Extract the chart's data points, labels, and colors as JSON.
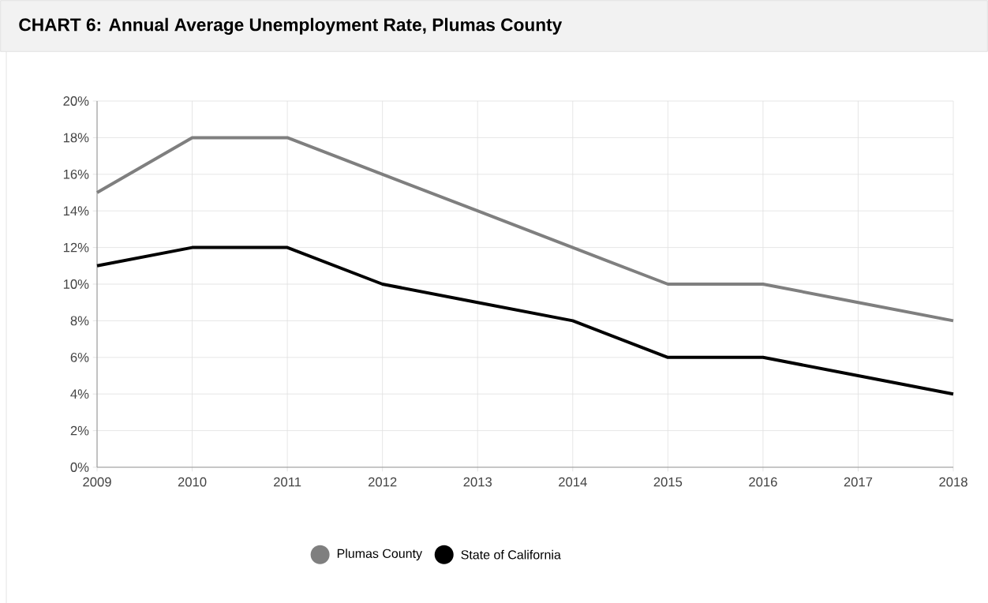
{
  "chart_data": {
    "type": "line",
    "title": "CHART 6: Annual Average Unemployment Rate, Plumas County",
    "x": [
      2009,
      2010,
      2011,
      2012,
      2013,
      2014,
      2015,
      2016,
      2017,
      2018
    ],
    "series": [
      {
        "name": "Plumas County",
        "color": "#7f7f7f",
        "values": [
          15,
          18,
          18,
          16,
          14,
          12,
          10,
          10,
          9,
          8
        ]
      },
      {
        "name": "State of California",
        "color": "#000000",
        "values": [
          11,
          12,
          12,
          10,
          9,
          8,
          6,
          6,
          5,
          4
        ]
      }
    ],
    "xlim": [
      2009,
      2018
    ],
    "xticks": [
      2009,
      2010,
      2011,
      2012,
      2013,
      2014,
      2015,
      2016,
      2017,
      2018
    ],
    "ylim": [
      0,
      20
    ],
    "yticks": [
      {
        "value": 0,
        "label": "0%"
      },
      {
        "value": 2,
        "label": "2%"
      },
      {
        "value": 4,
        "label": "4%"
      },
      {
        "value": 6,
        "label": "6%"
      },
      {
        "value": 8,
        "label": "8%"
      },
      {
        "value": 10,
        "label": "10%"
      },
      {
        "value": 12,
        "label": "12%"
      },
      {
        "value": 14,
        "label": "14%"
      },
      {
        "value": 16,
        "label": "16%"
      },
      {
        "value": 18,
        "label": "18%"
      },
      {
        "value": 20,
        "label": "20%"
      }
    ],
    "grid": true,
    "legend": "bottom",
    "marker": "none",
    "line_style": "solid"
  }
}
